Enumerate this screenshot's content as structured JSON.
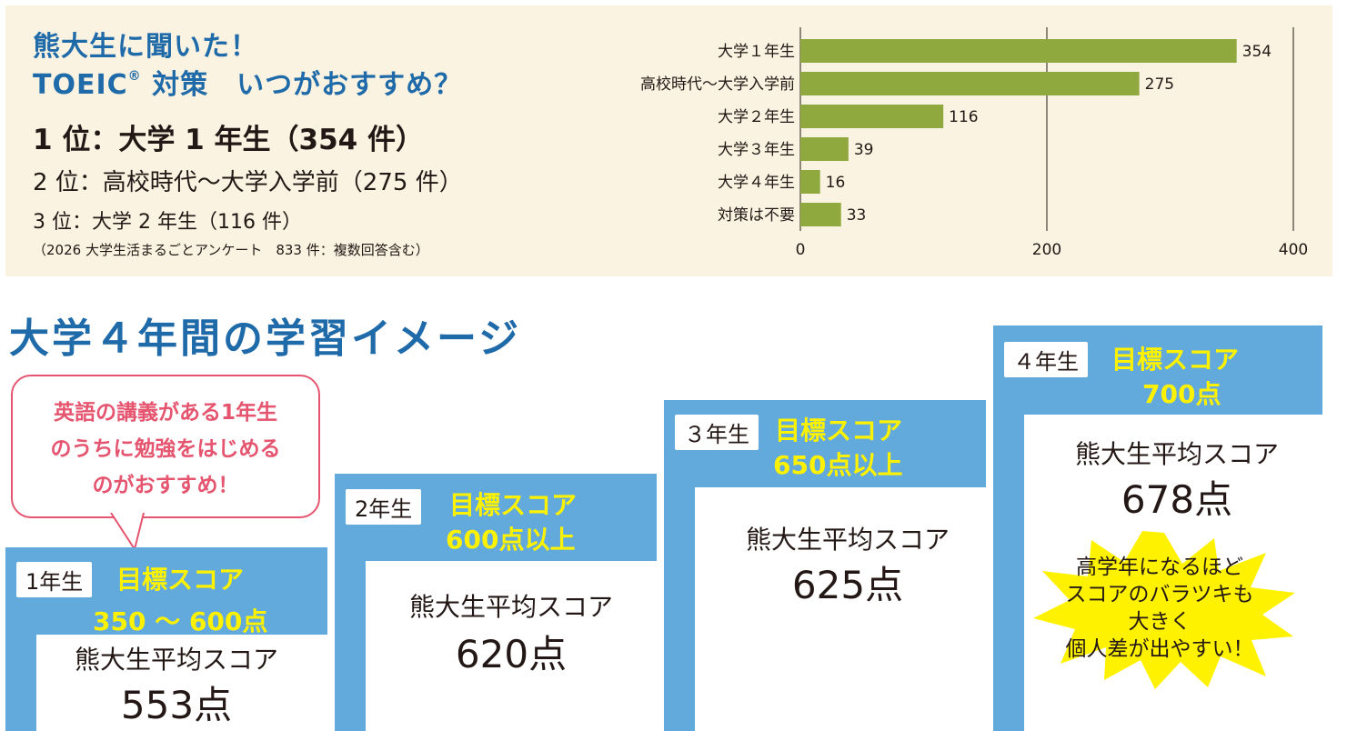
{
  "header": {
    "title_line1": "熊大生に聞いた！",
    "title_line2": "TOEIC",
    "title_line2_mark": "®",
    "title_line2_rest": " 対策　いつがおすすめ？",
    "rank1": "1 位：大学 1 年生（354 件）",
    "rank2": "2 位：高校時代〜大学入学前（275 件）",
    "rank3": "3 位：大学 2 年生（116 件）",
    "source": "（2026 大学生活まるごとアンケート　833 件：複数回答含む）"
  },
  "chart_data": {
    "type": "bar",
    "orientation": "horizontal",
    "categories": [
      "大学１年生",
      "高校時代〜大学入学前",
      "大学２年生",
      "大学３年生",
      "大学４年生",
      "対策は不要"
    ],
    "values": [
      354,
      275,
      116,
      39,
      16,
      33
    ],
    "xlim": [
      0,
      400
    ],
    "xticks": [
      0,
      200,
      400
    ],
    "bar_color": "#8fa93e",
    "grid": true
  },
  "section": {
    "title": "大学４年間の学習イメージ"
  },
  "bubble": {
    "lines": [
      "英語の講義がある1年生",
      "のうちに勉強をはじめる",
      "のがおすすめ！"
    ]
  },
  "years": [
    {
      "badge": "1年生",
      "target_label": "目標スコア",
      "target_value": "350 ～ 600点",
      "avg_label": "熊大生平均スコア",
      "avg_value": "553点"
    },
    {
      "badge": "2年生",
      "target_label": "目標スコア",
      "target_value": "600点以上",
      "avg_label": "熊大生平均スコア",
      "avg_value": "620点"
    },
    {
      "badge": "３年生",
      "target_label": "目標スコア",
      "target_value": "650点以上",
      "avg_label": "熊大生平均スコア",
      "avg_value": "625点"
    },
    {
      "badge": "４年生",
      "target_label": "目標スコア",
      "target_value": "700点",
      "avg_label": "熊大生平均スコア",
      "avg_value": "678点"
    }
  ],
  "burst": {
    "lines": [
      "高学年になるほど",
      "スコアのバラツキも",
      "大きく",
      "個人差が出やすい！"
    ]
  },
  "colors": {
    "blue": "#62a9dc",
    "title_blue": "#1f6aa9",
    "yellow": "#fff200",
    "pink": "#e5556f",
    "burst_yellow": "#fff200"
  }
}
